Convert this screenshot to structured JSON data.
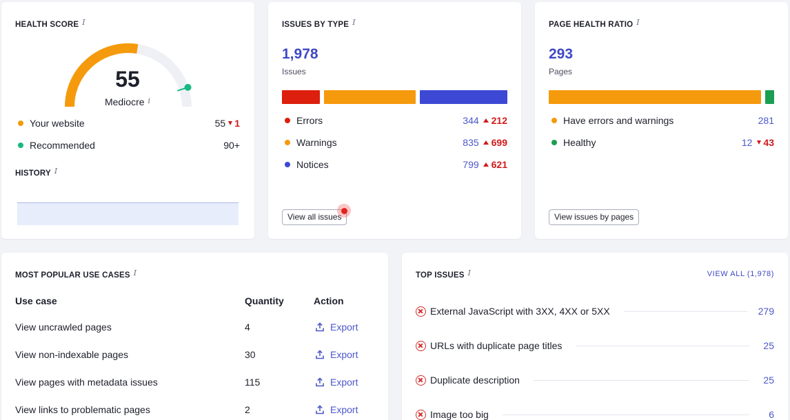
{
  "health_score": {
    "title": "HEALTH SCORE",
    "info": "i",
    "score": "55",
    "score_value": 55,
    "rating": "Mediocre",
    "rating_info": "i",
    "legend": [
      {
        "label": "Your website",
        "value": "55",
        "delta": "1",
        "color": "#f59a0c"
      },
      {
        "label": "Recommended",
        "value": "90+",
        "color": "#17b981"
      }
    ],
    "history_title": "HISTORY",
    "history_info": "i"
  },
  "issues_by_type": {
    "title": "ISSUES BY TYPE",
    "info": "i",
    "total": "1,978",
    "total_label": "Issues",
    "bar": [
      {
        "name": "Errors",
        "value": 344,
        "color": "#dd1f0d"
      },
      {
        "name": "Warnings",
        "value": 835,
        "color": "#f59a0c"
      },
      {
        "name": "Notices",
        "value": 799,
        "color": "#3d48d4"
      }
    ],
    "rows": [
      {
        "label": "Errors",
        "value": "344",
        "delta": "212",
        "color": "#dd1f0d"
      },
      {
        "label": "Warnings",
        "value": "835",
        "delta": "699",
        "color": "#f59a0c"
      },
      {
        "label": "Notices",
        "value": "799",
        "delta": "621",
        "color": "#3d48d4"
      }
    ],
    "button": "View all issues"
  },
  "page_health": {
    "title": "PAGE HEALTH RATIO",
    "info": "i",
    "total": "293",
    "total_label": "Pages",
    "bar": [
      {
        "name": "Have errors and warnings",
        "value": 281,
        "color": "#f59a0c"
      },
      {
        "name": "Healthy",
        "value": 12,
        "color": "#1a9e52"
      }
    ],
    "rows": [
      {
        "label": "Have errors and warnings",
        "value": "281",
        "color": "#f59a0c"
      },
      {
        "label": "Healthy",
        "value": "12",
        "delta": "43",
        "color": "#1a9e52"
      }
    ],
    "button": "View issues by pages"
  },
  "use_cases": {
    "title": "MOST POPULAR USE CASES",
    "info": "i",
    "headers": {
      "use_case": "Use case",
      "quantity": "Quantity",
      "action": "Action"
    },
    "rows": [
      {
        "label": "View uncrawled pages",
        "quantity": "4",
        "action": "Export"
      },
      {
        "label": "View non-indexable pages",
        "quantity": "30",
        "action": "Export"
      },
      {
        "label": "View pages with metadata issues",
        "quantity": "115",
        "action": "Export"
      },
      {
        "label": "View links to problematic pages",
        "quantity": "2",
        "action": "Export"
      }
    ]
  },
  "top_issues": {
    "title": "TOP ISSUES",
    "info": "i",
    "view_all": "VIEW ALL (1,978)",
    "rows": [
      {
        "label": "External JavaScript with 3XX, 4XX or 5XX",
        "value": "279"
      },
      {
        "label": "URLs with duplicate page titles",
        "value": "25"
      },
      {
        "label": "Duplicate description",
        "value": "25"
      },
      {
        "label": "Image too big",
        "value": "6"
      }
    ]
  }
}
